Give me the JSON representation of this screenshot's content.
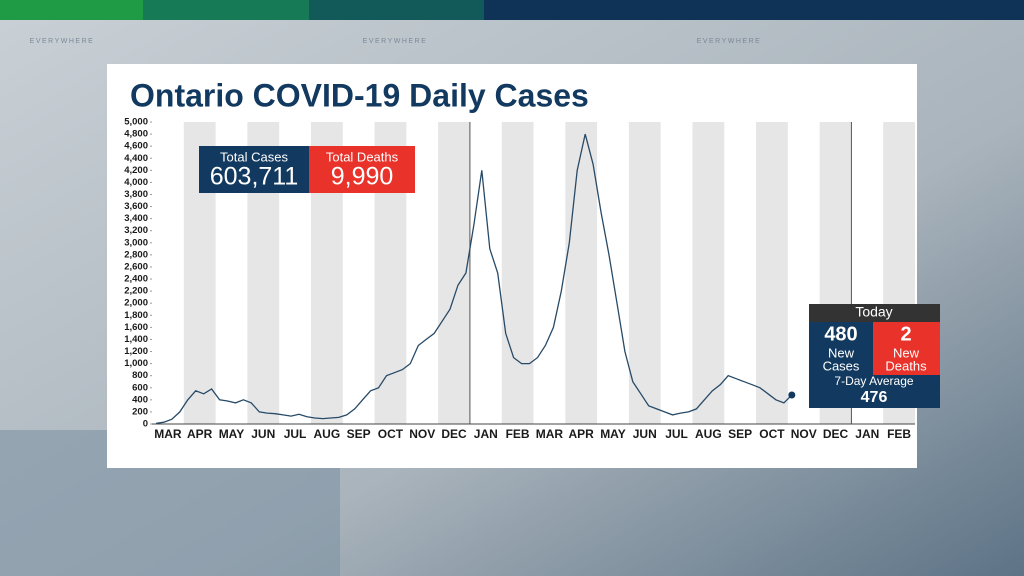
{
  "background": {
    "watermarks": [
      "EVERYWHERE",
      "EVERYWHERE",
      "EVERYWHERE"
    ]
  },
  "panels": {
    "totals": {
      "cases_label": "Total Cases",
      "cases": "603,711",
      "deaths_label": "Total Deaths",
      "deaths": "9,990"
    },
    "today": {
      "title": "Today",
      "cases": "480",
      "cases_label_1": "New",
      "cases_label_2": "Cases",
      "deaths": "2",
      "deaths_label_1": "New",
      "deaths_label_2": "Deaths",
      "average_label": "7-Day Average",
      "average": "476"
    }
  },
  "chart_data": {
    "type": "line",
    "title": "Ontario COVID-19 Daily Cases",
    "color": "#274a67",
    "categories": [
      "MAR",
      null,
      null,
      null,
      "APR",
      null,
      null,
      null,
      "MAY",
      null,
      null,
      null,
      "JUN",
      null,
      null,
      null,
      "JUL",
      null,
      null,
      null,
      "AUG",
      null,
      null,
      null,
      "SEP",
      null,
      null,
      null,
      "OCT",
      null,
      null,
      null,
      "NOV",
      null,
      null,
      null,
      "DEC",
      null,
      null,
      null,
      "JAN",
      null,
      null,
      null,
      "FEB",
      null,
      null,
      null,
      "MAR",
      null,
      null,
      null,
      "APR",
      null,
      null,
      null,
      "MAY",
      null,
      null,
      null,
      "JUN",
      null,
      null,
      null,
      "JUL",
      null,
      null,
      null,
      "AUG",
      null,
      null,
      null,
      "SEP",
      null,
      null,
      null,
      "OCT",
      null,
      null,
      null,
      "NOV",
      null,
      null,
      null,
      "DEC",
      null,
      null,
      null,
      "JAN",
      null,
      null,
      null,
      "FEB",
      null,
      null,
      null
    ],
    "values": [
      10,
      30,
      80,
      200,
      400,
      550,
      500,
      580,
      400,
      380,
      350,
      400,
      350,
      200,
      180,
      170,
      150,
      130,
      160,
      120,
      100,
      90,
      100,
      110,
      150,
      250,
      400,
      550,
      600,
      800,
      850,
      900,
      1000,
      1300,
      1400,
      1500,
      1700,
      1900,
      2300,
      2500,
      3300,
      4200,
      2900,
      2500,
      1500,
      1100,
      1000,
      1000,
      1100,
      1300,
      1600,
      2200,
      3000,
      4200,
      4800,
      4300,
      3500,
      2800,
      2000,
      1200,
      700,
      500,
      300,
      250,
      200,
      150,
      180,
      200,
      250,
      400,
      550,
      650,
      800,
      750,
      700,
      650,
      600,
      500,
      400,
      350,
      480,
      null,
      null,
      null,
      null,
      null,
      null,
      null,
      null,
      null,
      null,
      null,
      null,
      null,
      null,
      null
    ],
    "ylim": [
      0,
      5000
    ],
    "yticks": [
      0,
      200,
      400,
      600,
      800,
      {
        "value": 1000,
        "label": "1,000"
      },
      {
        "value": 1200,
        "label": "1,200"
      },
      {
        "value": 1400,
        "label": "1,400"
      },
      {
        "value": 1600,
        "label": "1,600"
      },
      {
        "value": 1800,
        "label": "1,800"
      },
      {
        "value": 2000,
        "label": "2,000"
      },
      {
        "value": 2200,
        "label": "2,200"
      },
      {
        "value": 2400,
        "label": "2,400"
      },
      {
        "value": 2600,
        "label": "2,600"
      },
      {
        "value": 2800,
        "label": "2,800"
      },
      {
        "value": 3000,
        "label": "3,000"
      },
      {
        "value": 3200,
        "label": "3,200"
      },
      {
        "value": 3400,
        "label": "3,400"
      },
      {
        "value": 3600,
        "label": "3,600"
      },
      {
        "value": 3800,
        "label": "3,800"
      },
      {
        "value": 4000,
        "label": "4,000"
      },
      {
        "value": 4200,
        "label": "4,200"
      },
      {
        "value": 4400,
        "label": "4,400"
      },
      {
        "value": 4600,
        "label": "4,600"
      },
      {
        "value": 4800,
        "label": "4,800"
      },
      {
        "value": 5000,
        "label": "5,000"
      }
    ]
  }
}
